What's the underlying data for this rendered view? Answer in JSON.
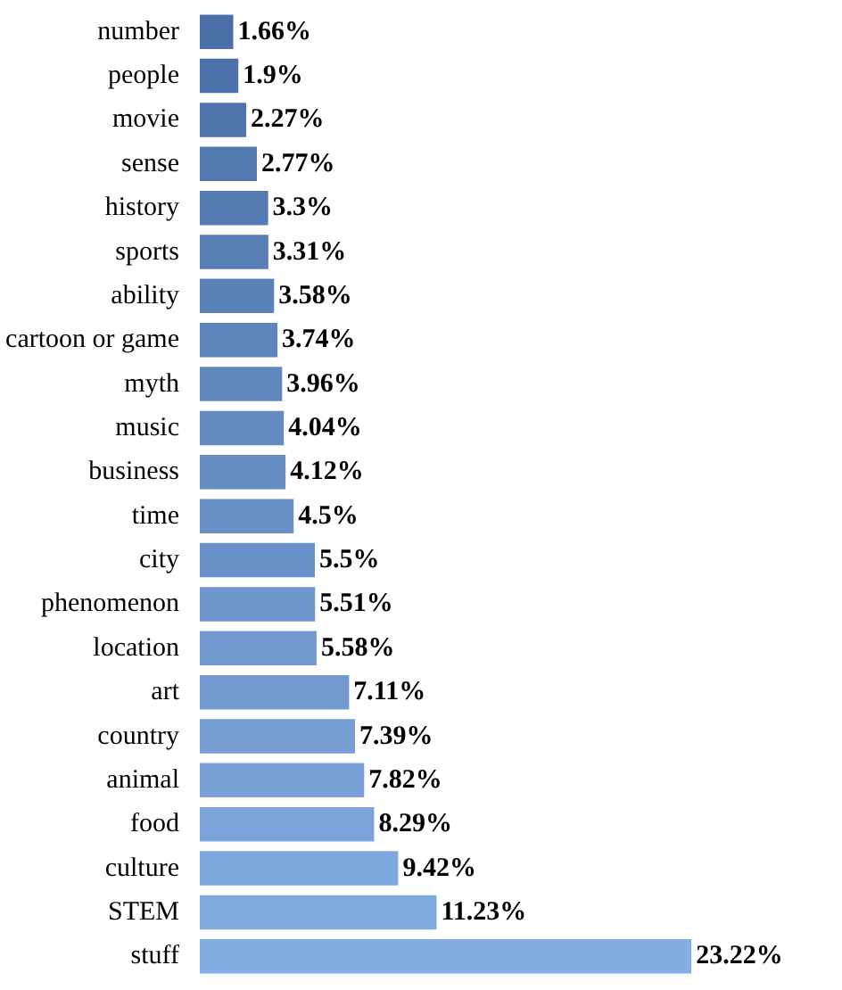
{
  "chart_data": {
    "type": "bar",
    "orientation": "horizontal",
    "categories": [
      "number",
      "people",
      "movie",
      "sense",
      "history",
      "sports",
      "ability",
      "cartoon or game",
      "myth",
      "music",
      "business",
      "time",
      "city",
      "phenomenon",
      "location",
      "art",
      "country",
      "animal",
      "food",
      "culture",
      "STEM",
      "stuff"
    ],
    "values": [
      1.66,
      1.9,
      2.27,
      2.77,
      3.3,
      3.31,
      3.58,
      3.74,
      3.96,
      4.04,
      4.12,
      4.5,
      5.5,
      5.51,
      5.58,
      7.11,
      7.39,
      7.82,
      8.29,
      9.42,
      11.23,
      23.22
    ],
    "value_labels": [
      "1.66%",
      "1.9%",
      "2.27%",
      "2.77%",
      "3.3%",
      "3.31%",
      "3.58%",
      "3.74%",
      "3.96%",
      "4.04%",
      "4.12%",
      "4.5%",
      "5.5%",
      "5.51%",
      "5.58%",
      "7.11%",
      "7.39%",
      "7.82%",
      "8.29%",
      "9.42%",
      "11.23%",
      "23.22%"
    ],
    "colors": [
      "#4a6fa8",
      "#4d72ab",
      "#5075ae",
      "#5278b0",
      "#557bb3",
      "#587eb6",
      "#5b81b9",
      "#5d84bc",
      "#6087be",
      "#638ac1",
      "#668dc4",
      "#688fc7",
      "#6b92ca",
      "#6e95cd",
      "#7198cf",
      "#739bd2",
      "#769ed5",
      "#79a1d8",
      "#7ca4db",
      "#7ea7dd",
      "#81aae0",
      "#84ade3"
    ],
    "tick_labels": "y",
    "grid": false
  }
}
